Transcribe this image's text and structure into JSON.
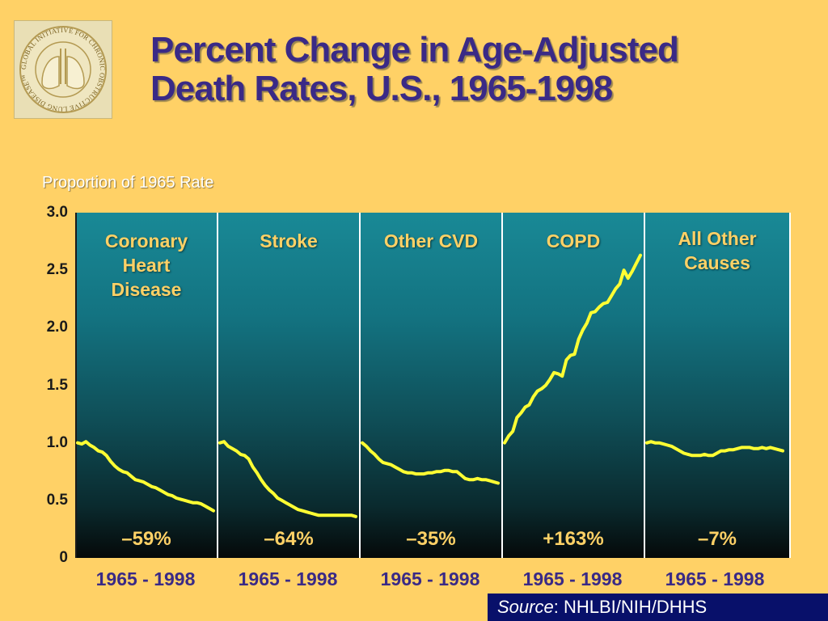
{
  "logo": {
    "text": "GLOBAL INITIATIVE FOR CHRONIC OBSTRUCTIVE LUNG DISEASE™",
    "icon": "lungs-icon"
  },
  "title": {
    "line1": "Percent Change in Age-Adjusted",
    "line2": "Death Rates, U.S., 1965-1998"
  },
  "source": {
    "label": "Source",
    "text": ":  NHLBI/NIH/DHHS"
  },
  "chart_data": {
    "type": "line",
    "ylabel": "Proportion of 1965 Rate",
    "ylim": [
      0,
      3.0
    ],
    "yticks": [
      {
        "value": 3.0,
        "label": "3.0"
      },
      {
        "value": 2.5,
        "label": "2.5"
      },
      {
        "value": 2.0,
        "label": "2.0"
      },
      {
        "value": 1.5,
        "label": "1.5"
      },
      {
        "value": 1.0,
        "label": "1.0"
      },
      {
        "value": 0.5,
        "label": "0.5"
      },
      {
        "value": 0,
        "label": "0"
      }
    ],
    "line_color": "#ffff33",
    "panels": [
      {
        "name": "Coronary Heart Disease",
        "label_lines": [
          "Coronary",
          "Heart",
          "Disease"
        ],
        "change": "–59%",
        "years": "1965 - 1998",
        "x": [
          1965,
          1966,
          1967,
          1968,
          1969,
          1970,
          1971,
          1972,
          1973,
          1974,
          1975,
          1976,
          1977,
          1978,
          1979,
          1980,
          1981,
          1982,
          1983,
          1984,
          1985,
          1986,
          1987,
          1988,
          1989,
          1990,
          1991,
          1992,
          1993,
          1994,
          1995,
          1996,
          1997,
          1998
        ],
        "values": [
          1.0,
          0.99,
          1.01,
          0.98,
          0.96,
          0.93,
          0.92,
          0.89,
          0.84,
          0.8,
          0.77,
          0.75,
          0.74,
          0.71,
          0.68,
          0.67,
          0.66,
          0.64,
          0.62,
          0.61,
          0.59,
          0.57,
          0.55,
          0.54,
          0.52,
          0.51,
          0.5,
          0.49,
          0.48,
          0.48,
          0.47,
          0.45,
          0.43,
          0.41
        ]
      },
      {
        "name": "Stroke",
        "label_lines": [
          "Stroke"
        ],
        "change": "–64%",
        "years": "1965 - 1998",
        "x": [
          1965,
          1966,
          1967,
          1968,
          1969,
          1970,
          1971,
          1972,
          1973,
          1974,
          1975,
          1976,
          1977,
          1978,
          1979,
          1980,
          1981,
          1982,
          1983,
          1984,
          1985,
          1986,
          1987,
          1988,
          1989,
          1990,
          1991,
          1992,
          1993,
          1994,
          1995,
          1996,
          1997,
          1998
        ],
        "values": [
          1.0,
          1.01,
          0.97,
          0.95,
          0.93,
          0.9,
          0.89,
          0.86,
          0.79,
          0.74,
          0.68,
          0.63,
          0.59,
          0.56,
          0.52,
          0.5,
          0.48,
          0.46,
          0.44,
          0.42,
          0.41,
          0.4,
          0.39,
          0.38,
          0.37,
          0.37,
          0.37,
          0.37,
          0.37,
          0.37,
          0.37,
          0.37,
          0.37,
          0.36
        ]
      },
      {
        "name": "Other CVD",
        "label_lines": [
          "Other CVD"
        ],
        "change": "–35%",
        "years": "1965 - 1998",
        "x": [
          1965,
          1966,
          1967,
          1968,
          1969,
          1970,
          1971,
          1972,
          1973,
          1974,
          1975,
          1976,
          1977,
          1978,
          1979,
          1980,
          1981,
          1982,
          1983,
          1984,
          1985,
          1986,
          1987,
          1988,
          1989,
          1990,
          1991,
          1992,
          1993,
          1994,
          1995,
          1996,
          1997,
          1998
        ],
        "values": [
          1.0,
          0.97,
          0.93,
          0.9,
          0.86,
          0.83,
          0.82,
          0.81,
          0.79,
          0.77,
          0.75,
          0.74,
          0.74,
          0.73,
          0.73,
          0.73,
          0.74,
          0.74,
          0.75,
          0.75,
          0.76,
          0.76,
          0.75,
          0.75,
          0.72,
          0.69,
          0.68,
          0.68,
          0.69,
          0.68,
          0.68,
          0.67,
          0.66,
          0.65
        ]
      },
      {
        "name": "COPD",
        "label_lines": [
          "COPD"
        ],
        "change": "+163%",
        "years": "1965 - 1998",
        "x": [
          1965,
          1966,
          1967,
          1968,
          1969,
          1970,
          1971,
          1972,
          1973,
          1974,
          1975,
          1976,
          1977,
          1978,
          1979,
          1980,
          1981,
          1982,
          1983,
          1984,
          1985,
          1986,
          1987,
          1988,
          1989,
          1990,
          1991,
          1992,
          1993,
          1994,
          1995,
          1996,
          1997,
          1998
        ],
        "values": [
          1.0,
          1.06,
          1.1,
          1.22,
          1.26,
          1.31,
          1.33,
          1.4,
          1.45,
          1.47,
          1.5,
          1.55,
          1.61,
          1.6,
          1.58,
          1.72,
          1.76,
          1.77,
          1.9,
          1.98,
          2.04,
          2.13,
          2.14,
          2.18,
          2.21,
          2.22,
          2.28,
          2.34,
          2.38,
          2.5,
          2.43,
          2.49,
          2.56,
          2.63
        ]
      },
      {
        "name": "All Other Causes",
        "label_lines": [
          "All Other",
          "Causes"
        ],
        "change": "–7%",
        "years": "1965 - 1998",
        "x": [
          1965,
          1966,
          1967,
          1968,
          1969,
          1970,
          1971,
          1972,
          1973,
          1974,
          1975,
          1976,
          1977,
          1978,
          1979,
          1980,
          1981,
          1982,
          1983,
          1984,
          1985,
          1986,
          1987,
          1988,
          1989,
          1990,
          1991,
          1992,
          1993,
          1994,
          1995,
          1996,
          1997,
          1998
        ],
        "values": [
          1.0,
          1.01,
          1.0,
          1.0,
          0.99,
          0.98,
          0.97,
          0.95,
          0.93,
          0.91,
          0.9,
          0.89,
          0.89,
          0.89,
          0.9,
          0.89,
          0.89,
          0.91,
          0.93,
          0.93,
          0.94,
          0.94,
          0.95,
          0.96,
          0.96,
          0.96,
          0.95,
          0.95,
          0.96,
          0.95,
          0.96,
          0.95,
          0.94,
          0.93
        ]
      }
    ]
  }
}
